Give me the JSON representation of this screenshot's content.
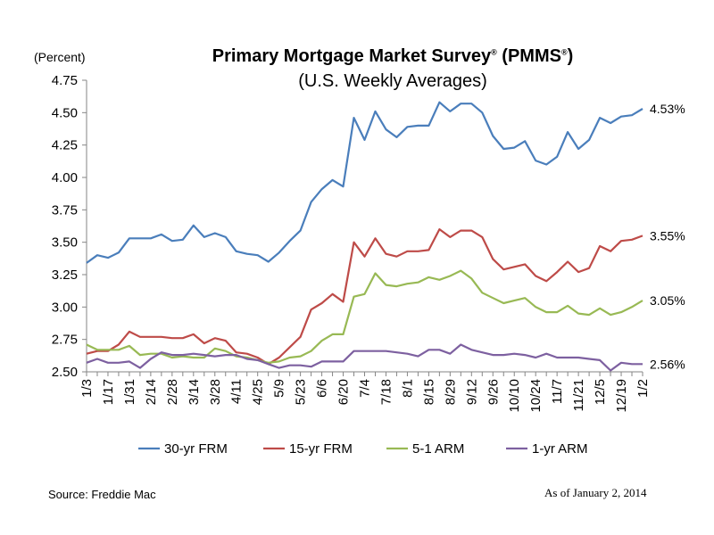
{
  "chart_data": {
    "type": "line",
    "title": "Primary Mortgage Market Survey",
    "title_marks": "(PMMS",
    "reg": "®",
    "subtitle": "(U.S. Weekly Averages)",
    "y_unit": "(Percent)",
    "ylim": [
      2.5,
      4.75
    ],
    "yticks": [
      "2.50",
      "2.75",
      "3.00",
      "3.25",
      "3.50",
      "3.75",
      "4.00",
      "4.25",
      "4.50",
      "4.75"
    ],
    "xtick_labels": [
      "1/3",
      "1/17",
      "1/31",
      "2/14",
      "2/28",
      "3/14",
      "3/28",
      "4/11",
      "4/25",
      "5/9",
      "5/23",
      "6/6",
      "6/20",
      "7/4",
      "7/18",
      "8/1",
      "8/15",
      "8/29",
      "9/12",
      "9/26",
      "10/10",
      "10/24",
      "11/7",
      "11/21",
      "12/5",
      "12/19",
      "1/2"
    ],
    "grid": false,
    "legend_position": "bottom",
    "colors": {
      "fr30": "#4a7ebb",
      "fr15": "#be4b48",
      "arm51": "#98b954",
      "arm1": "#7d60a0"
    },
    "series": [
      {
        "name": "30-yr FRM",
        "end_label": "4.53%",
        "color": "#4a7ebb",
        "values": [
          3.34,
          3.4,
          3.38,
          3.42,
          3.53,
          3.53,
          3.53,
          3.56,
          3.51,
          3.52,
          3.63,
          3.54,
          3.57,
          3.54,
          3.43,
          3.41,
          3.4,
          3.35,
          3.42,
          3.51,
          3.59,
          3.81,
          3.91,
          3.98,
          3.93,
          4.46,
          4.29,
          4.51,
          4.37,
          4.31,
          4.39,
          4.4,
          4.4,
          4.58,
          4.51,
          4.57,
          4.57,
          4.5,
          4.32,
          4.22,
          4.23,
          4.28,
          4.13,
          4.1,
          4.16,
          4.35,
          4.22,
          4.29,
          4.46,
          4.42,
          4.47,
          4.48,
          4.53
        ]
      },
      {
        "name": "15-yr FRM",
        "end_label": "3.55%",
        "color": "#be4b48",
        "values": [
          2.64,
          2.66,
          2.66,
          2.71,
          2.81,
          2.77,
          2.77,
          2.77,
          2.76,
          2.76,
          2.79,
          2.72,
          2.76,
          2.74,
          2.65,
          2.64,
          2.61,
          2.56,
          2.61,
          2.69,
          2.77,
          2.98,
          3.03,
          3.1,
          3.04,
          3.5,
          3.39,
          3.53,
          3.41,
          3.39,
          3.43,
          3.43,
          3.44,
          3.6,
          3.54,
          3.59,
          3.59,
          3.54,
          3.37,
          3.29,
          3.31,
          3.33,
          3.24,
          3.2,
          3.27,
          3.35,
          3.27,
          3.3,
          3.47,
          3.43,
          3.51,
          3.52,
          3.55
        ]
      },
      {
        "name": "5-1 ARM",
        "end_label": "3.05%",
        "color": "#98b954",
        "values": [
          2.71,
          2.67,
          2.67,
          2.67,
          2.7,
          2.63,
          2.64,
          2.64,
          2.61,
          2.62,
          2.61,
          2.61,
          2.68,
          2.66,
          2.62,
          2.61,
          2.59,
          2.57,
          2.58,
          2.61,
          2.62,
          2.66,
          2.74,
          2.79,
          2.79,
          3.08,
          3.1,
          3.26,
          3.17,
          3.16,
          3.18,
          3.19,
          3.23,
          3.21,
          3.24,
          3.28,
          3.22,
          3.11,
          3.07,
          3.03,
          3.05,
          3.07,
          3.0,
          2.96,
          2.96,
          3.01,
          2.95,
          2.94,
          2.99,
          2.94,
          2.96,
          3.0,
          3.05
        ]
      },
      {
        "name": "1-yr ARM",
        "end_label": "2.56%",
        "color": "#7d60a0",
        "values": [
          2.57,
          2.6,
          2.57,
          2.57,
          2.58,
          2.53,
          2.6,
          2.65,
          2.63,
          2.63,
          2.64,
          2.63,
          2.62,
          2.63,
          2.63,
          2.6,
          2.59,
          2.56,
          2.53,
          2.55,
          2.55,
          2.54,
          2.58,
          2.58,
          2.58,
          2.66,
          2.66,
          2.66,
          2.66,
          2.65,
          2.64,
          2.62,
          2.67,
          2.67,
          2.64,
          2.71,
          2.67,
          2.65,
          2.63,
          2.63,
          2.64,
          2.63,
          2.61,
          2.64,
          2.61,
          2.61,
          2.61,
          2.6,
          2.59,
          2.51,
          2.57,
          2.56,
          2.56
        ]
      }
    ]
  },
  "footer": {
    "source": "Source: Freddie Mac",
    "as_of": "As of January 2, 2014"
  }
}
